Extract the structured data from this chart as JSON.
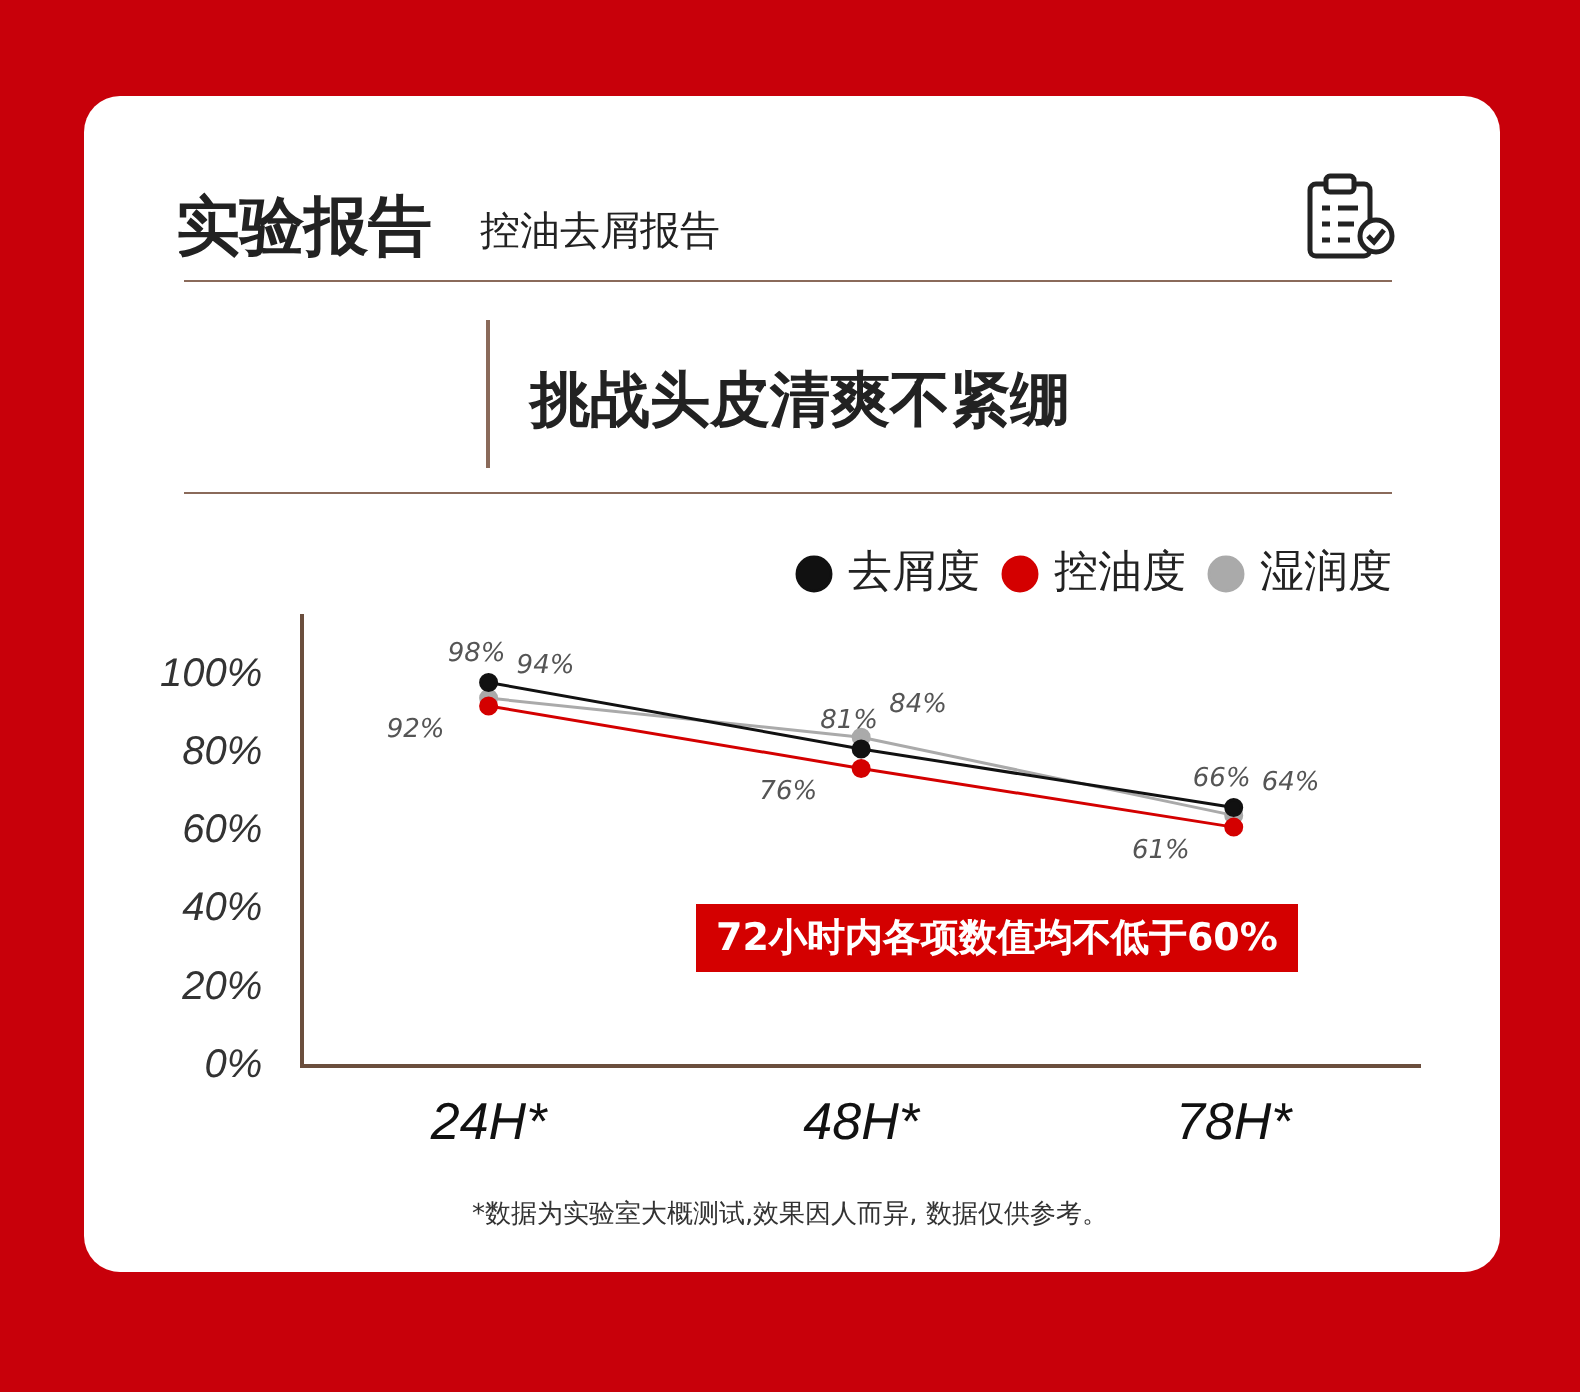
{
  "chart_data": {
    "type": "line",
    "title": "实验报告",
    "subtitle": "控油去屑报告",
    "categories": [
      "24H*",
      "48H*",
      "78H*"
    ],
    "series": [
      {
        "name": "去屑度",
        "color": "#111111",
        "values": [
          98,
          81,
          66
        ],
        "value_labels": [
          "98%",
          "81%",
          "66%"
        ]
      },
      {
        "name": "控油度",
        "color": "#d40000",
        "values": [
          92,
          76,
          61
        ],
        "value_labels": [
          "92%",
          "76%",
          "61%"
        ]
      },
      {
        "name": "湿润度",
        "color": "#aaaaaa",
        "values": [
          94,
          84,
          64
        ],
        "value_labels": [
          "94%",
          "84%",
          "64%"
        ]
      }
    ],
    "ylim": [
      0,
      115
    ],
    "yticks": [
      {
        "value": 0,
        "label": "0%"
      },
      {
        "value": 20,
        "label": "20%"
      },
      {
        "value": 40,
        "label": "40%"
      },
      {
        "value": 60,
        "label": "60%"
      },
      {
        "value": 80,
        "label": "80%"
      },
      {
        "value": 100,
        "label": "100%"
      }
    ],
    "grid": false,
    "legend": "top right",
    "marker": "circle",
    "line_style": "solid",
    "annotations": [
      "挑战头皮清爽不紧绷",
      "72小时内各项数值均不低于60%",
      "*数据为实验室大概测试,效果因人而异, 数据仅供参考。"
    ]
  }
}
